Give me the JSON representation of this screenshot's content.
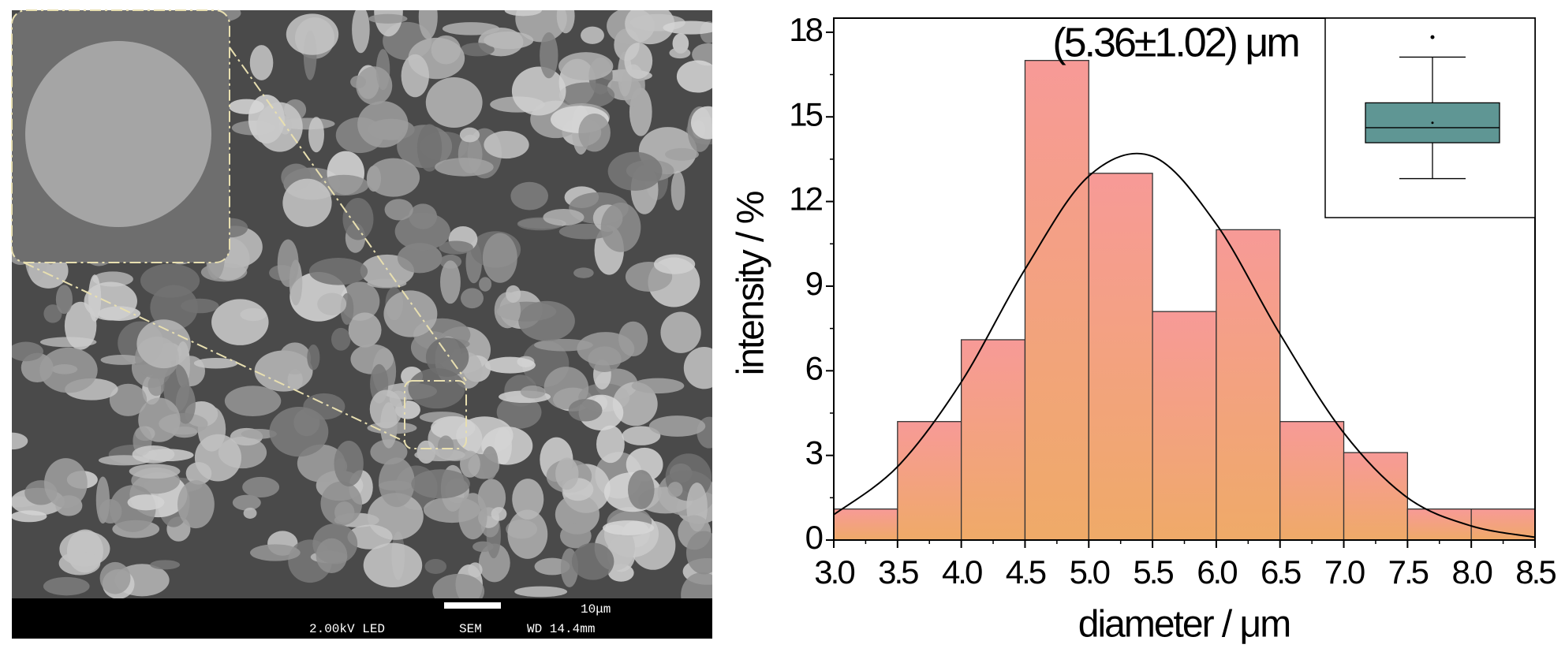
{
  "sem_image": {
    "voltage": "2.00kV LED",
    "mode": "SEM",
    "scale": "10μm",
    "working_distance": "WD 14.4mm"
  },
  "chart_data": {
    "type": "histogram",
    "xlabel": "diameter / μm",
    "ylabel": "intensity / %",
    "annotation": "(5.36±1.02) μm",
    "bins": [
      3.0,
      3.5,
      4.0,
      4.5,
      5.0,
      5.5,
      6.0,
      6.5,
      7.0,
      7.5,
      8.0,
      8.5
    ],
    "values": [
      1.1,
      4.2,
      7.1,
      17,
      13,
      8.1,
      11,
      4.2,
      3.1,
      1.1,
      1.1
    ],
    "color_top": "#f79a97",
    "color_bottom": "#efaa68",
    "curve": {
      "x": [
        3.0,
        3.5,
        4.0,
        4.5,
        5.0,
        5.5,
        6.0,
        6.5,
        7.0,
        7.5,
        8.0,
        8.5
      ],
      "values": [
        0.9,
        2.6,
        5.6,
        9.6,
        12.9,
        13.6,
        11.2,
        7.3,
        3.8,
        1.5,
        0.5,
        0.1
      ],
      "color": "#000000"
    },
    "xlim": [
      3.0,
      8.5
    ],
    "xticks": [
      {
        "value": 3.0,
        "label": "3.0"
      },
      3.5,
      {
        "value": 4.0,
        "label": "4.0"
      },
      4.5,
      {
        "value": 5.0,
        "label": "5.0"
      },
      5.5,
      {
        "value": 6.0,
        "label": "6.0"
      },
      6.5,
      {
        "value": 7.0,
        "label": "7.0"
      },
      7.5,
      {
        "value": 8.0,
        "label": "8.0"
      },
      8.5
    ],
    "ylim": [
      0,
      18.5
    ],
    "yticks": [
      0,
      3,
      6,
      9,
      12,
      15,
      18
    ],
    "inset": {
      "type": "box",
      "color": "#5f9694",
      "ylim": [
        2.5,
        9.0
      ],
      "min": 3.77,
      "q1": 4.94,
      "median": 5.43,
      "mean": 5.59,
      "q3": 6.24,
      "max": 7.73,
      "outlier": 8.38
    }
  }
}
